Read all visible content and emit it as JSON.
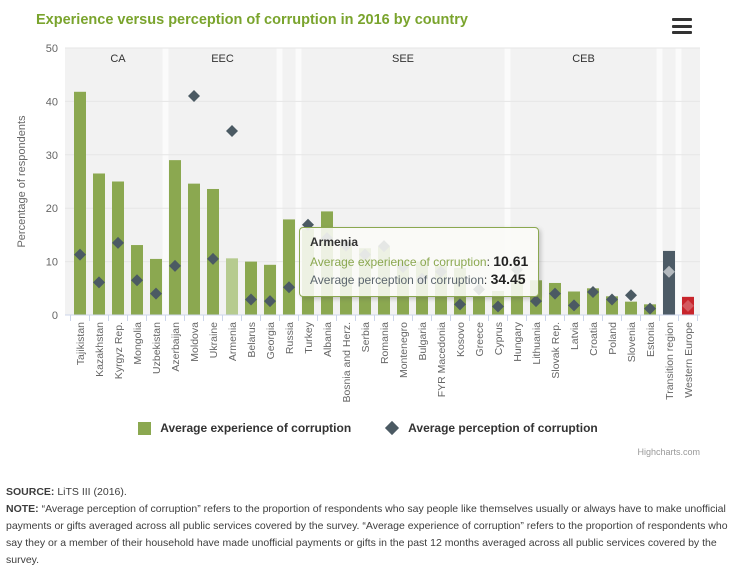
{
  "header": {
    "title": "Experience versus perception of corruption in 2016 by country",
    "menu_icon": "hamburger-icon"
  },
  "colors": {
    "title_green": "#7aa42d",
    "bar_green": "#8ba850",
    "bar_green_hover": "#b6cb8f",
    "diamond_slate": "#4b5a63",
    "transition_bar": "#4d5b66",
    "transition_diamond": "#b3b9be",
    "western_bar": "#c8252c",
    "western_diamond": "#d4595f",
    "plot_bg": "#f2f2f2",
    "band_separator": "#fbfbfb",
    "gridline": "#e6e6e6",
    "axis_line": "#ccd6eb",
    "axis_text": "#666666",
    "region_label_text": "#333333"
  },
  "chart_data": {
    "type": "bar",
    "title": "Experience versus perception of corruption in 2016 by country",
    "ylabel": "Percentage of respondents",
    "xlabel": "",
    "ylim": [
      0,
      50
    ],
    "yticks": [
      0,
      10,
      20,
      30,
      40,
      50
    ],
    "grid": true,
    "legend_position": "bottom",
    "categories": [
      "Tajikistan",
      "Kazakhstan",
      "Kyrgyz Rep.",
      "Mongolia",
      "Uzbekistan",
      "Azerbaijan",
      "Moldova",
      "Ukraine",
      "Armenia",
      "Belarus",
      "Georgia",
      "Russia",
      "Turkey",
      "Albania",
      "Bosnia and Herz.",
      "Serbia",
      "Romania",
      "Montenegro",
      "Bulgaria",
      "FYR Macedonia",
      "Kosovo",
      "Greece",
      "Cyprus",
      "Hungary",
      "Lithuania",
      "Slovak Rep.",
      "Latvia",
      "Croatia",
      "Poland",
      "Slovenia",
      "Estonia",
      "Transition region",
      "Western Europe"
    ],
    "series": [
      {
        "name": "Average experience of corruption",
        "type": "column",
        "values": [
          41.8,
          26.5,
          25.0,
          13.1,
          10.5,
          29.0,
          24.6,
          23.6,
          10.61,
          10.0,
          9.4,
          17.9,
          16.2,
          19.4,
          13.5,
          12.5,
          12.8,
          10.2,
          10.0,
          9.2,
          8.8,
          3.4,
          4.5,
          6.6,
          6.5,
          6.0,
          4.4,
          5.0,
          3.5,
          2.5,
          2.0,
          12.0,
          3.4
        ]
      },
      {
        "name": "Average perception of corruption",
        "type": "scatter-diamond",
        "values": [
          11.3,
          6.1,
          13.5,
          6.5,
          4.0,
          9.2,
          41.0,
          10.5,
          34.45,
          2.9,
          2.6,
          5.2,
          16.9,
          14.4,
          13.0,
          11.3,
          12.9,
          9.0,
          6.8,
          8.1,
          2.0,
          4.8,
          1.6,
          8.5,
          2.6,
          4.0,
          1.8,
          4.3,
          2.9,
          3.7,
          1.2,
          8.1,
          1.7
        ]
      }
    ],
    "groups": [
      {
        "label": "CA",
        "from": 0,
        "to": 4
      },
      {
        "label": "EEC",
        "from": 5,
        "to": 10
      },
      {
        "label": "",
        "from": 11,
        "to": 11
      },
      {
        "label": "SEE",
        "from": 12,
        "to": 22
      },
      {
        "label": "CEB",
        "from": 23,
        "to": 30
      },
      {
        "label": "",
        "from": 31,
        "to": 31
      },
      {
        "label": "",
        "from": 32,
        "to": 32
      }
    ],
    "point_overrides": {
      "8": {
        "state": "hover",
        "bar_color": "#b6cb8f"
      },
      "31": {
        "bar_color": "#4d5b66",
        "marker_color": "#b3b9be"
      },
      "32": {
        "bar_color": "#c8252c",
        "marker_color": "#d4595f"
      }
    }
  },
  "legend": {
    "items": [
      {
        "label": "Average experience of corruption",
        "marker": "green-square"
      },
      {
        "label": "Average perception of corruption",
        "marker": "slate-diamond"
      }
    ]
  },
  "tooltip": {
    "title": "Armenia",
    "lines": [
      {
        "label": "Average experience of corruption",
        "value": "10.61"
      },
      {
        "label": "Average perception of corruption",
        "value": "34.45"
      }
    ]
  },
  "credit": "Highcharts.com",
  "footer": {
    "source_prefix": "SOURCE:",
    "source_text": " LiTS III (2016).",
    "note_prefix": "NOTE:",
    "note_text": " “Average perception of corruption” refers to the proportion of respondents who say people like themselves usually or always have to make unofficial payments or gifts averaged across all public services covered by the survey. “Average experience of corruption” refers to the proportion of respondents who say they or a member of their household have made unofficial payments or gifts in the past 12 months averaged across all public services covered by the survey."
  }
}
